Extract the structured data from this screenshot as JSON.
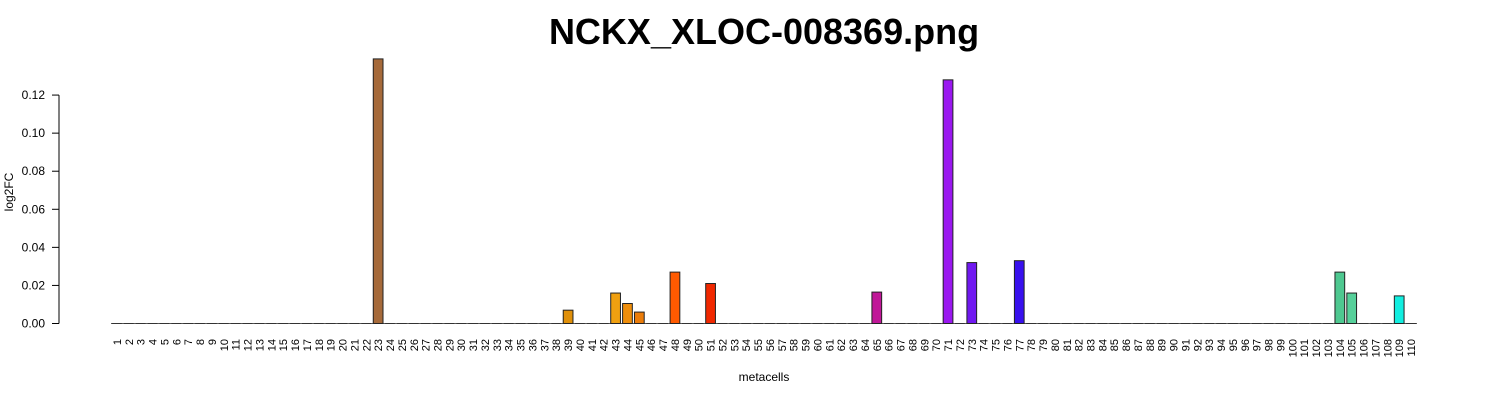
{
  "chart_data": {
    "type": "bar",
    "title": "NCKX_XLOC-008369.png",
    "xlabel": "metacells",
    "ylabel": "log2FC",
    "ylim": [
      0,
      0.14
    ],
    "yticks": [
      "0.00",
      "0.02",
      "0.04",
      "0.06",
      "0.08",
      "0.10",
      "0.12"
    ],
    "grid": false,
    "legend": "none",
    "categories": [
      "1",
      "2",
      "3",
      "4",
      "5",
      "6",
      "7",
      "8",
      "9",
      "10",
      "11",
      "12",
      "13",
      "14",
      "15",
      "16",
      "17",
      "18",
      "19",
      "20",
      "21",
      "22",
      "23",
      "24",
      "25",
      "26",
      "27",
      "28",
      "29",
      "30",
      "31",
      "32",
      "33",
      "34",
      "35",
      "36",
      "37",
      "38",
      "39",
      "40",
      "41",
      "42",
      "43",
      "44",
      "45",
      "46",
      "47",
      "48",
      "49",
      "50",
      "51",
      "52",
      "53",
      "54",
      "55",
      "56",
      "57",
      "58",
      "59",
      "60",
      "61",
      "62",
      "63",
      "64",
      "65",
      "66",
      "67",
      "68",
      "69",
      "70",
      "71",
      "72",
      "73",
      "74",
      "75",
      "76",
      "77",
      "78",
      "79",
      "80",
      "81",
      "82",
      "83",
      "84",
      "85",
      "86",
      "87",
      "88",
      "89",
      "90",
      "91",
      "92",
      "93",
      "94",
      "95",
      "96",
      "97",
      "98",
      "99",
      "100",
      "101",
      "102",
      "103",
      "104",
      "105",
      "106",
      "107",
      "108",
      "109",
      "110"
    ],
    "values": [
      0,
      0,
      0,
      0,
      0,
      0,
      0,
      0,
      0,
      0,
      0,
      0,
      0,
      0,
      0,
      0,
      0,
      0,
      0,
      0,
      0,
      0,
      0.139,
      0,
      0,
      0,
      0,
      0,
      0,
      0,
      0,
      0,
      0,
      0,
      0,
      0,
      0,
      0,
      0.007,
      0,
      0,
      0,
      0.016,
      0.0105,
      0.006,
      0,
      0,
      0.027,
      0,
      0,
      0.021,
      0,
      0,
      0,
      0,
      0,
      0,
      0,
      0,
      0,
      0,
      0,
      0,
      0,
      0.0165,
      0,
      0,
      0,
      0,
      0,
      0.128,
      0,
      0.032,
      0,
      0,
      0,
      0.033,
      0,
      0,
      0,
      0,
      0,
      0,
      0,
      0,
      0,
      0,
      0,
      0,
      0,
      0,
      0,
      0,
      0,
      0,
      0,
      0,
      0,
      0,
      0,
      0,
      0,
      0,
      0.027,
      0.016,
      0,
      0,
      0,
      0.0145,
      0
    ],
    "colors": {
      "23": "#A66A3A",
      "39": "#E0900A",
      "43": "#F0A010",
      "44": "#EE8E0C",
      "45": "#EA7C0A",
      "48": "#FF5A00",
      "51": "#F02800",
      "65": "#C01898",
      "71": "#9A18F0",
      "73": "#7018F0",
      "77": "#3810EE",
      "104": "#4EC890",
      "105": "#56D09A",
      "109": "#12EEE0"
    },
    "default_color": "#BBBBBB"
  }
}
